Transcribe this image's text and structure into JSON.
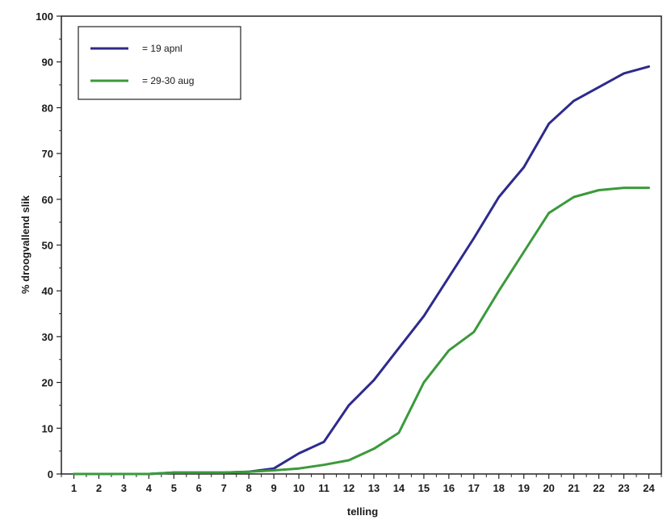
{
  "chart_data": {
    "type": "line",
    "title": "",
    "xlabel": "telling",
    "ylabel": "% droogvallend slik",
    "x": [
      1,
      2,
      3,
      4,
      5,
      6,
      7,
      8,
      9,
      10,
      11,
      12,
      13,
      14,
      15,
      16,
      17,
      18,
      19,
      20,
      21,
      22,
      23,
      24
    ],
    "ylim": [
      0,
      100
    ],
    "yticks": [
      0,
      10,
      20,
      30,
      40,
      50,
      60,
      70,
      80,
      90,
      100
    ],
    "grid": false,
    "legend_position": "top-left",
    "series": [
      {
        "name": "= 19 apnl",
        "color": "#2e2a8c",
        "values": [
          0,
          0,
          0,
          0,
          0.3,
          0.3,
          0.3,
          0.5,
          1.2,
          4.5,
          7,
          15,
          20.5,
          27.5,
          34.5,
          43,
          51.5,
          60.5,
          67,
          76.5,
          81.5,
          84.5,
          87.5,
          89
        ]
      },
      {
        "name": "= 29-30 aug",
        "color": "#3a9a3a",
        "values": [
          0,
          0,
          0,
          0,
          0.3,
          0.3,
          0.3,
          0.5,
          0.8,
          1.2,
          2,
          3,
          5.5,
          9,
          20,
          27,
          31,
          40,
          48.5,
          57,
          60.5,
          62,
          62.5,
          62.5
        ]
      }
    ]
  }
}
